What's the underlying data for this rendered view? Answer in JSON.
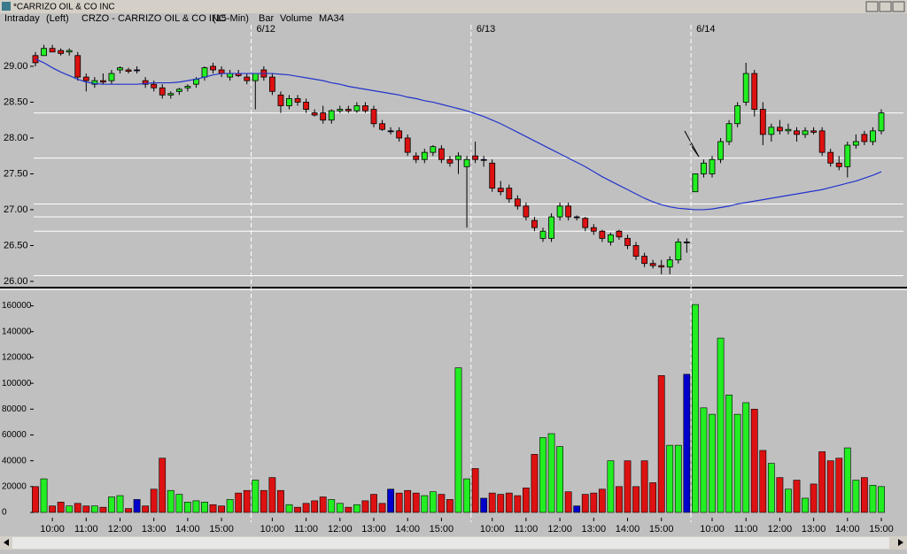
{
  "window_title": "*CARRIZO OIL & CO INC",
  "chart_data": {
    "type": "candlestick",
    "header": {
      "mode": "Intraday",
      "scale_side": "(Left)",
      "title": "CRZO - CARRIZO OIL & CO INC",
      "interval": "(15-Min)",
      "style": "Bar"
    },
    "categories": [
      null,
      null,
      "10:00",
      null,
      null,
      null,
      "11:00",
      null,
      null,
      null,
      "12:00",
      null,
      null,
      null,
      "13:00",
      null,
      null,
      null,
      "14:00",
      null,
      null,
      null,
      "15:00",
      null,
      null,
      null,
      null,
      null,
      "10:00",
      null,
      null,
      null,
      "11:00",
      null,
      null,
      null,
      "12:00",
      null,
      null,
      null,
      "13:00",
      null,
      null,
      null,
      "14:00",
      null,
      null,
      null,
      "15:00",
      null,
      null,
      null,
      null,
      null,
      "10:00",
      null,
      null,
      null,
      "11:00",
      null,
      null,
      null,
      "12:00",
      null,
      null,
      null,
      "13:00",
      null,
      null,
      null,
      "14:00",
      null,
      null,
      null,
      "15:00",
      null,
      null,
      null,
      null,
      null,
      "10:00",
      null,
      null,
      null,
      "11:00",
      null,
      null,
      null,
      "12:00",
      null,
      null,
      null,
      "13:00",
      null,
      null,
      null,
      "14:00",
      null,
      null,
      null,
      "15:00"
    ],
    "dates": [
      null,
      null,
      null,
      null,
      null,
      null,
      null,
      null,
      null,
      null,
      null,
      null,
      null,
      null,
      null,
      null,
      null,
      null,
      null,
      null,
      null,
      null,
      null,
      null,
      null,
      null,
      "6/12",
      null,
      null,
      null,
      null,
      null,
      null,
      null,
      null,
      null,
      null,
      null,
      null,
      null,
      null,
      null,
      null,
      null,
      null,
      null,
      null,
      null,
      null,
      null,
      null,
      null,
      "6/13",
      null,
      null,
      null,
      null,
      null,
      null,
      null,
      null,
      null,
      null,
      null,
      null,
      null,
      null,
      null,
      null,
      null,
      null,
      null,
      null,
      null,
      null,
      null,
      null,
      null,
      "6/14",
      null,
      null,
      null,
      null,
      null,
      null,
      null,
      null,
      null,
      null,
      null,
      null,
      null,
      null,
      null,
      null,
      null,
      null,
      null,
      null,
      null,
      null
    ],
    "open": [
      29.15,
      29.15,
      29.25,
      29.22,
      29.2,
      29.15,
      28.85,
      28.75,
      28.8,
      28.8,
      28.95,
      28.95,
      28.95,
      28.8,
      28.75,
      28.7,
      28.6,
      28.65,
      28.7,
      28.75,
      28.85,
      29.0,
      28.95,
      28.85,
      28.9,
      28.85,
      28.8,
      28.95,
      28.85,
      28.6,
      28.45,
      28.55,
      28.5,
      28.35,
      28.35,
      28.25,
      28.38,
      28.4,
      28.38,
      28.45,
      28.4,
      28.2,
      28.1,
      28.1,
      28.0,
      27.75,
      27.7,
      27.8,
      27.85,
      27.7,
      27.7,
      27.6,
      27.75,
      27.7,
      27.65,
      27.3,
      27.3,
      27.15,
      27.05,
      26.85,
      26.6,
      26.6,
      26.9,
      27.05,
      26.9,
      26.88,
      26.75,
      26.7,
      26.55,
      26.7,
      26.6,
      26.5,
      26.35,
      26.25,
      26.22,
      26.2,
      26.3,
      26.55,
      27.25,
      27.5,
      27.5,
      27.7,
      27.95,
      28.2,
      28.5,
      28.9,
      28.4,
      28.05,
      28.15,
      28.1,
      28.1,
      28.05,
      28.1,
      28.1,
      27.8,
      27.65,
      27.6,
      27.9,
      28.05,
      27.95,
      28.1
    ],
    "high": [
      29.2,
      29.3,
      29.3,
      29.25,
      29.25,
      29.2,
      28.9,
      28.85,
      28.9,
      28.95,
      29.0,
      28.98,
      29.0,
      28.85,
      28.8,
      28.75,
      28.65,
      28.7,
      28.75,
      28.85,
      29.0,
      29.05,
      29.0,
      28.95,
      28.95,
      28.9,
      28.9,
      29.0,
      28.9,
      28.65,
      28.6,
      28.6,
      28.55,
      28.4,
      28.45,
      28.4,
      28.45,
      28.45,
      28.5,
      28.5,
      28.45,
      28.25,
      28.15,
      28.15,
      28.05,
      27.8,
      27.85,
      27.9,
      27.9,
      27.75,
      27.8,
      27.75,
      27.95,
      27.75,
      27.7,
      27.4,
      27.35,
      27.2,
      27.1,
      26.9,
      26.75,
      26.95,
      27.1,
      27.1,
      26.92,
      26.9,
      26.8,
      26.72,
      26.68,
      26.72,
      26.65,
      26.55,
      26.4,
      26.3,
      26.3,
      26.35,
      26.6,
      26.6,
      27.5,
      27.7,
      27.75,
      28.0,
      28.25,
      28.5,
      29.05,
      28.95,
      28.5,
      28.2,
      28.25,
      28.2,
      28.15,
      28.15,
      28.15,
      28.15,
      27.85,
      27.75,
      27.95,
      28.05,
      28.1,
      28.15,
      28.4
    ],
    "low": [
      29.0,
      29.15,
      29.2,
      29.15,
      29.15,
      28.8,
      28.65,
      28.7,
      28.75,
      28.75,
      28.9,
      28.9,
      28.9,
      28.7,
      28.65,
      28.55,
      28.55,
      28.6,
      28.65,
      28.7,
      28.8,
      28.9,
      28.85,
      28.8,
      28.85,
      28.75,
      28.4,
      28.8,
      28.6,
      28.35,
      28.4,
      28.45,
      28.35,
      28.3,
      28.2,
      28.2,
      28.35,
      28.35,
      28.35,
      28.35,
      28.15,
      28.1,
      28.05,
      27.95,
      27.75,
      27.65,
      27.65,
      27.75,
      27.65,
      27.6,
      27.5,
      26.75,
      27.65,
      27.6,
      27.25,
      27.2,
      27.1,
      27.0,
      26.85,
      26.7,
      26.55,
      26.55,
      26.85,
      26.85,
      26.85,
      26.7,
      26.65,
      26.55,
      26.5,
      26.58,
      26.45,
      26.3,
      26.2,
      26.18,
      26.1,
      26.1,
      26.25,
      26.4,
      27.25,
      27.45,
      27.45,
      27.65,
      27.9,
      28.15,
      28.45,
      28.3,
      27.9,
      27.95,
      28.05,
      28.05,
      27.95,
      28.0,
      28.05,
      27.75,
      27.6,
      27.55,
      27.45,
      27.85,
      27.9,
      27.9,
      28.05
    ],
    "close": [
      29.05,
      29.25,
      29.2,
      29.18,
      29.22,
      28.85,
      28.8,
      28.8,
      28.78,
      28.9,
      28.98,
      28.93,
      28.95,
      28.75,
      28.7,
      28.6,
      28.62,
      28.68,
      28.72,
      28.82,
      28.98,
      28.95,
      28.9,
      28.9,
      28.87,
      28.8,
      28.9,
      28.85,
      28.65,
      28.45,
      28.55,
      28.5,
      28.4,
      28.32,
      28.25,
      28.38,
      28.4,
      28.38,
      28.45,
      28.38,
      28.2,
      28.12,
      28.1,
      28.0,
      27.8,
      27.7,
      27.8,
      27.88,
      27.7,
      27.65,
      27.75,
      27.7,
      27.7,
      27.7,
      27.3,
      27.25,
      27.15,
      27.05,
      26.9,
      26.75,
      26.7,
      26.9,
      27.05,
      26.9,
      26.9,
      26.75,
      26.7,
      26.6,
      26.65,
      26.62,
      26.5,
      26.35,
      26.25,
      26.22,
      26.2,
      26.3,
      26.55,
      26.55,
      27.5,
      27.65,
      27.7,
      27.95,
      28.2,
      28.45,
      28.9,
      28.4,
      28.05,
      28.15,
      28.1,
      28.12,
      28.05,
      28.1,
      28.08,
      27.8,
      27.65,
      27.6,
      27.9,
      27.95,
      27.95,
      28.1,
      28.35
    ],
    "levels": [
      28.35,
      27.72,
      27.08,
      26.9,
      26.7,
      26.08
    ],
    "up_color": "#22ee22",
    "down_color": "#dd1111",
    "flat_color": "#0000cc",
    "series": [
      {
        "name": "Volume",
        "color": "#0000cc",
        "values": [
          20000,
          26000,
          5000,
          8000,
          5000,
          7000,
          5000,
          5000,
          4000,
          12000,
          13000,
          3000,
          10000,
          5000,
          18000,
          42000,
          17000,
          14000,
          8000,
          9000,
          8000,
          6000,
          5000,
          10000,
          15000,
          17000,
          25000,
          17000,
          27000,
          17000,
          6000,
          4000,
          7000,
          9000,
          12000,
          10000,
          7000,
          4000,
          6000,
          9000,
          14000,
          7000,
          18000,
          15000,
          17000,
          15000,
          13000,
          16000,
          14000,
          10000,
          112000,
          26000,
          34000,
          11000,
          15000,
          14000,
          15000,
          13000,
          19000,
          45000,
          58000,
          61000,
          51000,
          16000,
          5000,
          14000,
          15000,
          18000,
          40000,
          20000,
          40000,
          20000,
          40000,
          23000,
          106000,
          52000,
          52000,
          107000,
          161000,
          81000,
          76000,
          135000,
          91000,
          76000,
          85000,
          80000,
          48000,
          38000,
          27000,
          18000,
          25000,
          11000,
          22000,
          47000,
          40000,
          42000,
          50000,
          25000,
          27000,
          21000,
          20000
        ]
      },
      {
        "name": "MA34",
        "color": "#2233cc",
        "values": [
          29.1,
          29.05,
          28.98,
          28.92,
          28.87,
          28.82,
          28.78,
          28.76,
          28.75,
          28.75,
          28.75,
          28.75,
          28.75,
          28.76,
          28.77,
          28.77,
          28.77,
          28.78,
          28.8,
          28.82,
          28.85,
          28.88,
          28.9,
          28.9,
          28.9,
          28.9,
          28.9,
          28.9,
          28.9,
          28.89,
          28.88,
          28.86,
          28.84,
          28.82,
          28.8,
          28.77,
          28.75,
          28.72,
          28.7,
          28.68,
          28.66,
          28.64,
          28.62,
          28.6,
          28.57,
          28.55,
          28.52,
          28.5,
          28.47,
          28.44,
          28.41,
          28.38,
          28.34,
          28.3,
          28.25,
          28.2,
          28.14,
          28.08,
          28.02,
          27.96,
          27.9,
          27.84,
          27.78,
          27.72,
          27.66,
          27.6,
          27.53,
          27.46,
          27.4,
          27.34,
          27.28,
          27.22,
          27.16,
          27.11,
          27.07,
          27.04,
          27.02,
          27.01,
          27.0,
          27.0,
          27.01,
          27.03,
          27.05,
          27.08,
          27.1,
          27.12,
          27.14,
          27.16,
          27.18,
          27.2,
          27.22,
          27.24,
          27.26,
          27.28,
          27.31,
          27.34,
          27.37,
          27.4,
          27.44,
          27.48,
          27.53
        ]
      }
    ],
    "ylim": [
      25.95,
      29.74
    ],
    "yticks": [
      {
        "value": 26,
        "label": "26.00"
      },
      {
        "value": 26.5,
        "label": "26.50"
      },
      {
        "value": 27,
        "label": "27.00"
      },
      {
        "value": 27.5,
        "label": "27.50"
      },
      {
        "value": 28,
        "label": "28.00"
      },
      {
        "value": 28.5,
        "label": "28.50"
      },
      {
        "value": 29,
        "label": "29.00"
      }
    ],
    "y2lim": [
      0,
      170000
    ],
    "y2ticks": [
      0,
      20000,
      40000,
      60000,
      80000,
      100000,
      120000,
      140000,
      160000
    ]
  }
}
